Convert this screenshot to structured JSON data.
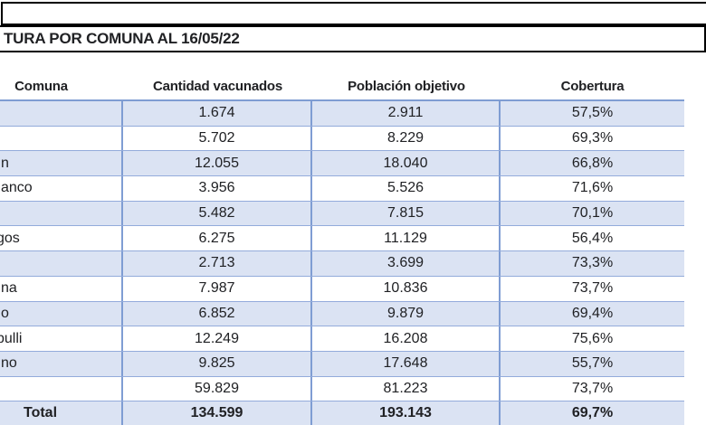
{
  "title": "TURA POR COMUNA AL 16/05/22",
  "colors": {
    "row_fill_blue": "#dbe3f3",
    "table_border_blue": "#7f9dd3",
    "row_separator_blue": "#93abdb",
    "box_border_black": "#000000",
    "text": "#202124"
  },
  "table": {
    "columns": [
      "Comuna",
      "Cantidad vacunados",
      "Población objetivo",
      "Cobertura"
    ],
    "rows": [
      {
        "comuna": "",
        "vacunados": "1.674",
        "objetivo": "2.911",
        "cobertura": "57,5%"
      },
      {
        "comuna": "",
        "vacunados": "5.702",
        "objetivo": "8.229",
        "cobertura": "69,3%"
      },
      {
        "comuna": "n",
        "vacunados": "12.055",
        "objetivo": "18.040",
        "cobertura": "66,8%"
      },
      {
        "comuna": "anco",
        "vacunados": "3.956",
        "objetivo": "5.526",
        "cobertura": "71,6%"
      },
      {
        "comuna": "",
        "vacunados": "5.482",
        "objetivo": "7.815",
        "cobertura": "70,1%"
      },
      {
        "comuna": "gos",
        "vacunados": "6.275",
        "objetivo": "11.129",
        "cobertura": "56,4%"
      },
      {
        "comuna": "",
        "vacunados": "2.713",
        "objetivo": "3.699",
        "cobertura": "73,3%"
      },
      {
        "comuna": "na",
        "vacunados": "7.987",
        "objetivo": "10.836",
        "cobertura": "73,7%"
      },
      {
        "comuna": "o",
        "vacunados": "6.852",
        "objetivo": "9.879",
        "cobertura": "69,4%"
      },
      {
        "comuna": "pulli",
        "vacunados": "12.249",
        "objetivo": "16.208",
        "cobertura": "75,6%"
      },
      {
        "comuna": "no",
        "vacunados": "9.825",
        "objetivo": "17.648",
        "cobertura": "55,7%"
      },
      {
        "comuna": "",
        "vacunados": "59.829",
        "objetivo": "81.223",
        "cobertura": "73,7%"
      }
    ],
    "total": {
      "label": "Total",
      "vacunados": "134.599",
      "objetivo": "193.143",
      "cobertura": "69,7%"
    }
  }
}
